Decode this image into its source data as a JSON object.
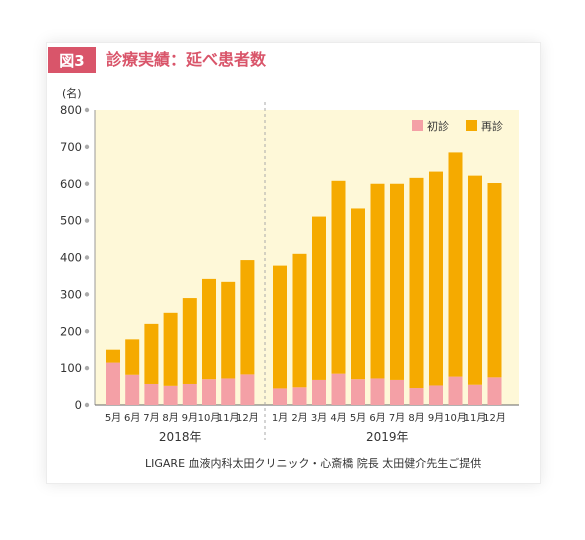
{
  "figure": {
    "tag": "図3",
    "title": "診療実績：延べ患者数",
    "credit": "LIGARE 血液内科太田クリニック・心斎橋 院長 太田健介先生ご提供"
  },
  "colors": {
    "background": "#fef8d8",
    "first_visit": "#f4a0a6",
    "revisit": "#f5aa00",
    "accent": "#d9556a"
  },
  "chart_data": {
    "type": "bar",
    "stacked": true,
    "ylabel": "(名)",
    "ylim": [
      0,
      800
    ],
    "yticks": [
      0,
      100,
      200,
      300,
      400,
      500,
      600,
      700,
      800
    ],
    "grid": false,
    "legend_position": "top-right",
    "year_groups": [
      {
        "label": "2018年",
        "categories": [
          "5月",
          "6月",
          "7月",
          "8月",
          "9月",
          "10月",
          "11月",
          "12月"
        ]
      },
      {
        "label": "2019年",
        "categories": [
          "1月",
          "2月",
          "3月",
          "4月",
          "5月",
          "6月",
          "7月",
          "8月",
          "9月",
          "10月",
          "11月",
          "12月"
        ]
      }
    ],
    "categories": [
      "5月",
      "6月",
      "7月",
      "8月",
      "9月",
      "10月",
      "11月",
      "12月",
      "1月",
      "2月",
      "3月",
      "4月",
      "5月",
      "6月",
      "7月",
      "8月",
      "9月",
      "10月",
      "11月",
      "12月"
    ],
    "series": [
      {
        "name": "初診",
        "values": [
          115,
          82,
          57,
          52,
          57,
          70,
          72,
          83,
          45,
          48,
          68,
          85,
          70,
          72,
          68,
          46,
          53,
          77,
          55,
          75
        ]
      },
      {
        "name": "再診",
        "values": [
          35,
          96,
          163,
          198,
          233,
          272,
          262,
          310,
          333,
          362,
          443,
          523,
          463,
          528,
          532,
          570,
          580,
          608,
          567,
          527
        ]
      }
    ],
    "totals": [
      150,
      178,
      220,
      250,
      290,
      342,
      334,
      393,
      378,
      410,
      511,
      608,
      533,
      600,
      600,
      616,
      633,
      685,
      622,
      602
    ]
  }
}
